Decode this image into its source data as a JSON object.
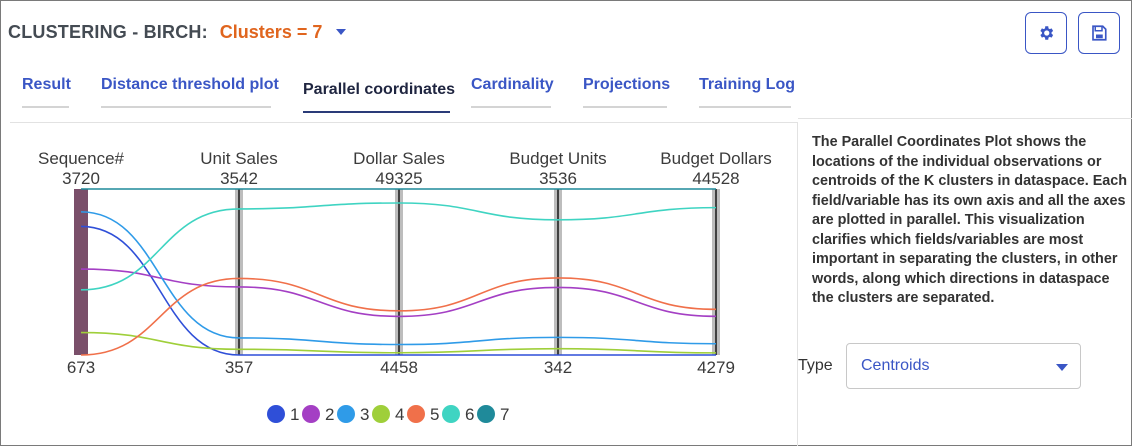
{
  "header": {
    "title": "CLUSTERING - BIRCH:",
    "cluster_select": "Clusters = 7",
    "settings_icon": "gear-icon",
    "save_icon": "floppy-disk-icon"
  },
  "tabs": [
    {
      "label": "Result",
      "active": false
    },
    {
      "label": "Distance threshold plot",
      "active": false
    },
    {
      "label": "Parallel coordinates",
      "active": true
    },
    {
      "label": "Cardinality",
      "active": false
    },
    {
      "label": "Projections",
      "active": false
    },
    {
      "label": "Training Log",
      "active": false
    }
  ],
  "side_panel": {
    "description": "The Parallel Coordinates Plot shows the locations of the individual observations or centroids of the K clusters in dataspace. Each field/variable has its own axis and all the axes are plotted in parallel. This visualization clarifies which fields/variables are most important in separating the clusters, in other words, along which directions in dataspace the clusters are separated.",
    "type_label": "Type",
    "type_value": "Centroids"
  },
  "chart_data": {
    "type": "parallel-coordinates",
    "axes": [
      {
        "name": "Sequence#",
        "max": "3720",
        "min": "673",
        "max_value": 3720,
        "min_value": 673
      },
      {
        "name": "Unit Sales",
        "max": "3542",
        "min": "357",
        "max_value": 3542,
        "min_value": 357
      },
      {
        "name": "Dollar Sales",
        "max": "49325",
        "min": "4458",
        "max_value": 49325,
        "min_value": 4458
      },
      {
        "name": "Budget Units",
        "max": "3536",
        "min": "342",
        "max_value": 3536,
        "min_value": 342
      },
      {
        "name": "Budget Dollars",
        "max": "44528",
        "min": "4279",
        "max_value": 44528,
        "min_value": 4279
      }
    ],
    "series": [
      {
        "name": "1",
        "color": "#2f4fd8",
        "values": [
          3032,
          357,
          4458,
          342,
          4279
        ]
      },
      {
        "name": "2",
        "color": "#a43fc4",
        "values": [
          2251,
          1663,
          14891,
          1642,
          13651
        ]
      },
      {
        "name": "3",
        "color": "#2f9be8",
        "values": [
          3300,
          685,
          7295,
          681,
          7007
        ]
      },
      {
        "name": "4",
        "color": "#9fcf3a",
        "values": [
          1084,
          467,
          5063,
          464,
          4792
        ]
      },
      {
        "name": "5",
        "color": "#f0704a",
        "values": [
          673,
          1826,
          16388,
          1824,
          15353
        ]
      },
      {
        "name": "6",
        "color": "#3fd4c2",
        "values": [
          1869,
          3160,
          45541,
          2943,
          40012
        ]
      },
      {
        "name": "7",
        "color": "#1f8a9a",
        "values": [
          3720,
          3542,
          49325,
          3536,
          44528
        ]
      }
    ]
  }
}
